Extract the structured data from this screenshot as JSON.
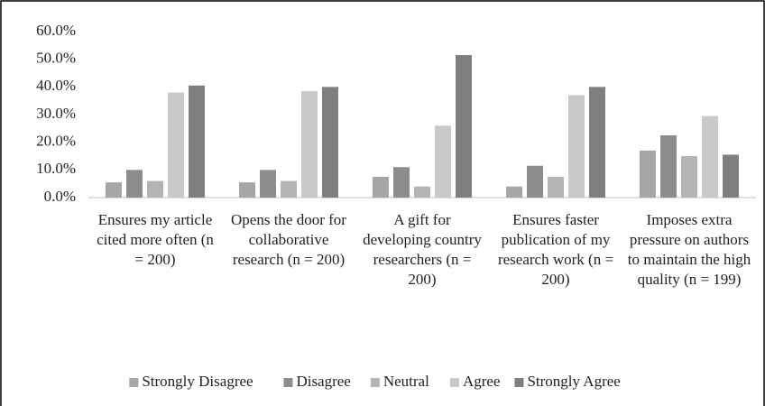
{
  "chart_data": {
    "type": "bar",
    "categories": [
      "Ensures my article cited more often (n = 200)",
      "Opens the door for collaborative research (n = 200)",
      "A gift for developing country researchers (n = 200)",
      "Ensures faster publication of my research work (n = 200)",
      "Imposes extra pressure on authors to maintain the high quality (n = 199)"
    ],
    "series": [
      {
        "name": "Strongly Disagree",
        "color": "#a6a6a6",
        "values": [
          5.5,
          5.5,
          7.5,
          4,
          17
        ]
      },
      {
        "name": "Disagree",
        "color": "#8c8c8c",
        "values": [
          10,
          10,
          11,
          11.5,
          22.5
        ]
      },
      {
        "name": "Neutral",
        "color": "#b4b4b4",
        "values": [
          6,
          6,
          4,
          7.5,
          15
        ]
      },
      {
        "name": "Agree",
        "color": "#c9c9c9",
        "values": [
          38,
          38.5,
          26,
          37,
          29.5
        ]
      },
      {
        "name": "Strongly Agree",
        "color": "#7f7f7f",
        "values": [
          40.5,
          40,
          51.5,
          40,
          15.5
        ]
      }
    ],
    "ylim": [
      0,
      60
    ],
    "yticks": [
      {
        "value": 0,
        "label": "0.0%"
      },
      {
        "value": 10,
        "label": "10.0%"
      },
      {
        "value": 20,
        "label": "20.0%"
      },
      {
        "value": 30,
        "label": "30.0%"
      },
      {
        "value": 40,
        "label": "40.0%"
      },
      {
        "value": 50,
        "label": "50.0%"
      },
      {
        "value": 60,
        "label": "60.0%"
      }
    ],
    "legend": "bottom"
  }
}
